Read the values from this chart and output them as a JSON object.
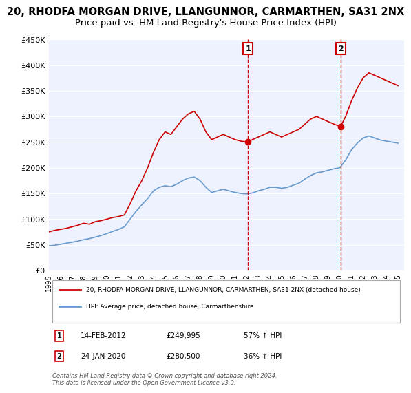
{
  "title": "20, RHODFA MORGAN DRIVE, LLANGUNNOR, CARMARTHEN, SA31 2NX",
  "subtitle": "Price paid vs. HM Land Registry's House Price Index (HPI)",
  "title_fontsize": 10.5,
  "subtitle_fontsize": 9.5,
  "ylim": [
    0,
    450000
  ],
  "yticks": [
    0,
    50000,
    100000,
    150000,
    200000,
    250000,
    300000,
    350000,
    400000,
    450000
  ],
  "ytick_labels": [
    "£0",
    "£50K",
    "£100K",
    "£150K",
    "£200K",
    "£250K",
    "£300K",
    "£350K",
    "£400K",
    "£450K"
  ],
  "xlim_start": 1995.0,
  "xlim_end": 2025.5,
  "red_line_color": "#cc0000",
  "blue_line_color": "#6699cc",
  "vline_color": "#cc0000",
  "event1_x": 2012.12,
  "event1_y": 249995,
  "event1_label": "1",
  "event1_date": "14-FEB-2012",
  "event1_price": "£249,995",
  "event1_hpi": "57% ↑ HPI",
  "event2_x": 2020.07,
  "event2_y": 280500,
  "event2_label": "2",
  "event2_date": "24-JAN-2020",
  "event2_price": "£280,500",
  "event2_hpi": "36% ↑ HPI",
  "legend_red": "20, RHODFA MORGAN DRIVE, LLANGUNNOR, CARMARTHEN, SA31 2NX (detached house)",
  "legend_blue": "HPI: Average price, detached house, Carmarthenshire",
  "footnote": "Contains HM Land Registry data © Crown copyright and database right 2024.\nThis data is licensed under the Open Government Licence v3.0.",
  "background_color": "#ffffff",
  "plot_bg_color": "#eef2ff",
  "grid_color": "#ffffff",
  "red_x": [
    1995.0,
    1995.5,
    1996.0,
    1996.5,
    1997.0,
    1997.5,
    1998.0,
    1998.5,
    1999.0,
    1999.5,
    2000.0,
    2000.5,
    2001.0,
    2001.5,
    2002.0,
    2002.5,
    2003.0,
    2003.5,
    2004.0,
    2004.5,
    2005.0,
    2005.5,
    2006.0,
    2006.5,
    2007.0,
    2007.5,
    2008.0,
    2008.5,
    2009.0,
    2009.5,
    2010.0,
    2010.5,
    2011.0,
    2011.5,
    2012.12,
    2012.5,
    2013.0,
    2013.5,
    2014.0,
    2014.5,
    2015.0,
    2015.5,
    2016.0,
    2016.5,
    2017.0,
    2017.5,
    2018.0,
    2018.5,
    2019.0,
    2019.5,
    2020.07,
    2020.5,
    2021.0,
    2021.5,
    2022.0,
    2022.5,
    2023.0,
    2023.5,
    2024.0,
    2024.5,
    2025.0
  ],
  "red_y": [
    75000,
    78000,
    80000,
    82000,
    85000,
    88000,
    92000,
    90000,
    95000,
    97000,
    100000,
    103000,
    105000,
    108000,
    130000,
    155000,
    175000,
    200000,
    230000,
    255000,
    270000,
    265000,
    280000,
    295000,
    305000,
    310000,
    295000,
    270000,
    255000,
    260000,
    265000,
    260000,
    255000,
    252000,
    249995,
    255000,
    260000,
    265000,
    270000,
    265000,
    260000,
    265000,
    270000,
    275000,
    285000,
    295000,
    300000,
    295000,
    290000,
    285000,
    280500,
    300000,
    330000,
    355000,
    375000,
    385000,
    380000,
    375000,
    370000,
    365000,
    360000
  ],
  "blue_x": [
    1995.0,
    1995.5,
    1996.0,
    1996.5,
    1997.0,
    1997.5,
    1998.0,
    1998.5,
    1999.0,
    1999.5,
    2000.0,
    2000.5,
    2001.0,
    2001.5,
    2002.0,
    2002.5,
    2003.0,
    2003.5,
    2004.0,
    2004.5,
    2005.0,
    2005.5,
    2006.0,
    2006.5,
    2007.0,
    2007.5,
    2008.0,
    2008.5,
    2009.0,
    2009.5,
    2010.0,
    2010.5,
    2011.0,
    2011.5,
    2012.0,
    2012.5,
    2013.0,
    2013.5,
    2014.0,
    2014.5,
    2015.0,
    2015.5,
    2016.0,
    2016.5,
    2017.0,
    2017.5,
    2018.0,
    2018.5,
    2019.0,
    2019.5,
    2020.0,
    2020.5,
    2021.0,
    2021.5,
    2022.0,
    2022.5,
    2023.0,
    2023.5,
    2024.0,
    2024.5,
    2025.0
  ],
  "blue_y": [
    48000,
    49000,
    51000,
    53000,
    55000,
    57000,
    60000,
    62000,
    65000,
    68000,
    72000,
    76000,
    80000,
    85000,
    100000,
    115000,
    128000,
    140000,
    155000,
    162000,
    165000,
    163000,
    168000,
    175000,
    180000,
    182000,
    175000,
    162000,
    152000,
    155000,
    158000,
    155000,
    152000,
    150000,
    149000,
    151000,
    155000,
    158000,
    162000,
    162000,
    160000,
    162000,
    166000,
    170000,
    178000,
    185000,
    190000,
    192000,
    195000,
    198000,
    200000,
    215000,
    235000,
    248000,
    258000,
    262000,
    258000,
    254000,
    252000,
    250000,
    248000
  ]
}
